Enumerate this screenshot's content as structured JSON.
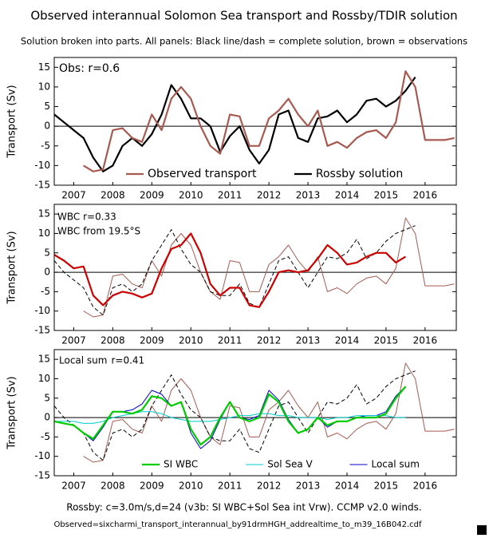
{
  "title": "Observed interannual Solomon Sea transport and Rossby/TDIR solution",
  "subtitle": "Solution broken into parts. All panels: Black line/dash = complete solution, brown = observations",
  "notes": [
    "Rossby: c=3.0m/s,d=24 (v3b: SI WBC+Sol Sea int Vrw). CCMP v2.0 winds.",
    "Observed=sixcharmi_transport_interannual_by91drmHGH_addrealtime_to_m39_16B042.cdf"
  ],
  "chart_data": [
    {
      "type": "line",
      "ylabel": "Transport (Sv)",
      "zeroline": true,
      "legend": "bottom",
      "annotations": [
        {
          "text": "Obs: r=0.6",
          "color": "#a85a50"
        }
      ],
      "x": [
        2007,
        2007.25,
        2007.5,
        2007.75,
        2008,
        2008.25,
        2008.5,
        2008.75,
        2009,
        2009.25,
        2009.5,
        2009.75,
        2010,
        2010.25,
        2010.5,
        2010.75,
        2011,
        2011.25,
        2011.5,
        2011.75,
        2012,
        2012.25,
        2012.5,
        2012.75,
        2013,
        2013.25,
        2013.5,
        2013.75,
        2014,
        2014.25,
        2014.5,
        2014.75,
        2015,
        2015.25,
        2015.5,
        2015.75,
        2016,
        2016.25,
        2016.5,
        2016.75,
        2017,
        2017.25
      ],
      "xlim": [
        2007,
        2017.3
      ],
      "ylim": [
        -15,
        17.5
      ],
      "yticks": [
        15,
        10,
        5,
        0,
        -5,
        -10,
        -15
      ],
      "xticks": [
        {
          "value": 2007.5,
          "label": "2007"
        },
        {
          "value": 2008.5,
          "label": "2008"
        },
        {
          "value": 2009.5,
          "label": "2009"
        },
        {
          "value": 2010.5,
          "label": "2010"
        },
        {
          "value": 2011.5,
          "label": "2011"
        },
        {
          "value": 2012.5,
          "label": "2012"
        },
        {
          "value": 2013.5,
          "label": "2013"
        },
        {
          "value": 2014.5,
          "label": "2014"
        },
        {
          "value": 2015.5,
          "label": "2015"
        },
        {
          "value": 2016.5,
          "label": "2016"
        }
      ],
      "series": [
        {
          "name": "Observed transport",
          "color": "#a85a50",
          "style": "thick",
          "values": [
            null,
            null,
            null,
            -10,
            -11.5,
            -11,
            -1,
            -0.5,
            -3,
            -4,
            3,
            -1,
            7,
            10,
            7,
            0,
            -5,
            -7,
            3,
            2.5,
            -5,
            -5,
            2,
            4,
            7,
            3,
            0,
            4,
            -5,
            -4,
            -5.5,
            -3,
            -1.5,
            -1,
            -3,
            1,
            14,
            10,
            -3.5,
            -3.5,
            -3.5,
            -3
          ]
        },
        {
          "name": "Rossby solution",
          "color": "#000000",
          "style": "thick",
          "values": [
            3,
            1,
            -1,
            -3,
            -8,
            -11.5,
            -10,
            -5,
            -3,
            -5,
            -2,
            3,
            10.5,
            7,
            2,
            2,
            0,
            -6.5,
            -2.5,
            0,
            -6,
            -9.5,
            -6,
            3,
            4,
            -3,
            -4,
            2,
            2.5,
            4,
            1,
            3,
            6.5,
            7,
            5,
            6.5,
            9,
            12.5,
            null,
            null,
            null,
            null
          ]
        }
      ]
    },
    {
      "type": "line",
      "ylabel": "Transport (Sv)",
      "zeroline": true,
      "legend": "top-left",
      "x": [
        2007,
        2007.25,
        2007.5,
        2007.75,
        2008,
        2008.25,
        2008.5,
        2008.75,
        2009,
        2009.25,
        2009.5,
        2009.75,
        2010,
        2010.25,
        2010.5,
        2010.75,
        2011,
        2011.25,
        2011.5,
        2011.75,
        2012,
        2012.25,
        2012.5,
        2012.75,
        2013,
        2013.25,
        2013.5,
        2013.75,
        2014,
        2014.25,
        2014.5,
        2014.75,
        2015,
        2015.25,
        2015.5,
        2015.75,
        2016,
        2016.25,
        2016.5,
        2016.75,
        2017,
        2017.25
      ],
      "xlim": [
        2007,
        2017.3
      ],
      "ylim": [
        -15,
        17.5
      ],
      "yticks": [
        15,
        10,
        5,
        0,
        -5,
        -10,
        -15
      ],
      "xticks": [
        {
          "value": 2007.5,
          "label": "2007"
        },
        {
          "value": 2008.5,
          "label": "2008"
        },
        {
          "value": 2009.5,
          "label": "2009"
        },
        {
          "value": 2010.5,
          "label": "2010"
        },
        {
          "value": 2011.5,
          "label": "2011"
        },
        {
          "value": 2012.5,
          "label": "2012"
        },
        {
          "value": 2013.5,
          "label": "2013"
        },
        {
          "value": 2014.5,
          "label": "2014"
        },
        {
          "value": 2015.5,
          "label": "2015"
        },
        {
          "value": 2016.5,
          "label": "2016"
        }
      ],
      "series": [
        {
          "name": "WBC r=0.33",
          "color": "#cc0000",
          "style": "thick",
          "values": [
            4.5,
            3,
            1,
            1.5,
            -6,
            -8.5,
            -6,
            -5,
            -5.5,
            -6.5,
            -5.5,
            1,
            6,
            7,
            10,
            5,
            -3,
            -6,
            -4,
            -4,
            -8.5,
            -9,
            -5,
            0,
            0.5,
            0,
            0.5,
            3.5,
            7,
            5,
            2,
            2.5,
            4,
            5,
            5,
            2.5,
            4,
            null,
            null,
            null,
            null,
            null
          ]
        },
        {
          "name": "WBC from 19.5°S",
          "color": "#000000",
          "style": "dashed",
          "values": [
            3,
            0,
            -2,
            -4,
            -9,
            -11,
            -4,
            -3,
            -5,
            -3,
            3,
            7,
            11,
            6,
            2,
            0,
            -5,
            -6,
            -6,
            -3,
            -8,
            -9,
            -3,
            3,
            4,
            0,
            -4,
            0,
            4,
            3.5,
            5,
            8.5,
            3.5,
            5,
            8,
            10,
            11,
            12,
            null,
            null,
            null,
            null
          ]
        },
        {
          "color": "#a85a50",
          "style": "thin",
          "values": [
            null,
            null,
            null,
            -10,
            -11.5,
            -11,
            -1,
            -0.5,
            -3,
            -4,
            3,
            -1,
            7,
            10,
            7,
            0,
            -5,
            -7,
            3,
            2.5,
            -5,
            -5,
            2,
            4,
            7,
            3,
            0,
            4,
            -5,
            -4,
            -5.5,
            -3,
            -1.5,
            -1,
            -3,
            1,
            14,
            10,
            -3.5,
            -3.5,
            -3.5,
            -3
          ]
        }
      ]
    },
    {
      "type": "line",
      "ylabel": "Transport (Sv)",
      "zeroline": true,
      "legend": "bottom",
      "annotations": [
        {
          "text": "Local sum",
          "color": "#0000cc"
        },
        {
          "text": "r=0.41",
          "color": "#a85a50"
        }
      ],
      "x": [
        2007,
        2007.25,
        2007.5,
        2007.75,
        2008,
        2008.25,
        2008.5,
        2008.75,
        2009,
        2009.25,
        2009.5,
        2009.75,
        2010,
        2010.25,
        2010.5,
        2010.75,
        2011,
        2011.25,
        2011.5,
        2011.75,
        2012,
        2012.25,
        2012.5,
        2012.75,
        2013,
        2013.25,
        2013.5,
        2013.75,
        2014,
        2014.25,
        2014.5,
        2014.75,
        2015,
        2015.25,
        2015.5,
        2015.75,
        2016,
        2016.25,
        2016.5,
        2016.75,
        2017,
        2017.25
      ],
      "xlim": [
        2007,
        2017.3
      ],
      "ylim": [
        -15,
        17.5
      ],
      "yticks": [
        15,
        10,
        5,
        0,
        -5,
        -10,
        -15
      ],
      "xticks": [
        {
          "value": 2007.5,
          "label": "2007"
        },
        {
          "value": 2008.5,
          "label": "2008"
        },
        {
          "value": 2009.5,
          "label": "2009"
        },
        {
          "value": 2010.5,
          "label": "2010"
        },
        {
          "value": 2011.5,
          "label": "2011"
        },
        {
          "value": 2012.5,
          "label": "2012"
        },
        {
          "value": 2013.5,
          "label": "2013"
        },
        {
          "value": 2014.5,
          "label": "2014"
        },
        {
          "value": 2015.5,
          "label": "2015"
        },
        {
          "value": 2016.5,
          "label": "2016"
        }
      ],
      "series": [
        {
          "name": "SI WBC",
          "color": "#00cc00",
          "style": "thick",
          "values": [
            -1,
            -1.5,
            -2,
            -4,
            -5.5,
            -2,
            1.5,
            1.5,
            1,
            2,
            5.5,
            5,
            3,
            4,
            -3,
            -7,
            -5,
            0,
            4,
            0,
            -1,
            0,
            6,
            4,
            -1,
            -4,
            -3,
            0,
            -2,
            -1,
            -1,
            0,
            0,
            0,
            1,
            5,
            8,
            null,
            null,
            null,
            null,
            null
          ]
        },
        {
          "name": "Sol Sea V",
          "color": "#00cccc",
          "style": "thin",
          "values": [
            -1,
            -1,
            -1,
            -1.5,
            -1.5,
            -1,
            0,
            0.5,
            1,
            1.5,
            1.5,
            1,
            0,
            -0.5,
            -1,
            -1,
            -1,
            -0.5,
            0,
            0.5,
            0.5,
            1,
            1,
            0.5,
            0.5,
            0,
            0,
            0,
            -0.5,
            0,
            0,
            0.5,
            0.5,
            0.5,
            0.5,
            0,
            0,
            null,
            null,
            null,
            null,
            null
          ]
        },
        {
          "name": "Local sum",
          "color": "#0000cc",
          "style": "thin",
          "values": [
            -1,
            -1.5,
            -2,
            -4,
            -6,
            -2.5,
            1.5,
            1.5,
            2,
            3.5,
            7,
            6,
            3,
            4,
            -4,
            -8,
            -6,
            -0.5,
            4,
            0,
            -0.5,
            0.5,
            7,
            4.5,
            -0.5,
            -4,
            -3,
            0,
            -2.5,
            -1,
            -1,
            0,
            0.5,
            0.5,
            1.5,
            5.5,
            8,
            null,
            null,
            null,
            null,
            null
          ]
        },
        {
          "color": "#000000",
          "style": "dashed",
          "values": [
            3,
            0,
            -2,
            -4,
            -9,
            -11,
            -4,
            -3,
            -5,
            -3,
            3,
            7,
            11,
            6,
            2,
            0,
            -5,
            -6,
            -6,
            -3,
            -8,
            -9,
            -3,
            3,
            4,
            0,
            -4,
            0,
            4,
            3.5,
            5,
            8.5,
            3.5,
            5,
            8,
            10,
            11,
            12,
            null,
            null,
            null,
            null
          ]
        },
        {
          "color": "#a85a50",
          "style": "thin",
          "values": [
            null,
            null,
            null,
            -10,
            -11.5,
            -11,
            -1,
            -0.5,
            -3,
            -4,
            3,
            -1,
            7,
            10,
            7,
            0,
            -5,
            -7,
            3,
            2.5,
            -5,
            -5,
            2,
            4,
            7,
            3,
            0,
            4,
            -5,
            -4,
            -5.5,
            -3,
            -1.5,
            -1,
            -3,
            1,
            14,
            10,
            -3.5,
            -3.5,
            -3.5,
            -3
          ]
        }
      ]
    }
  ]
}
